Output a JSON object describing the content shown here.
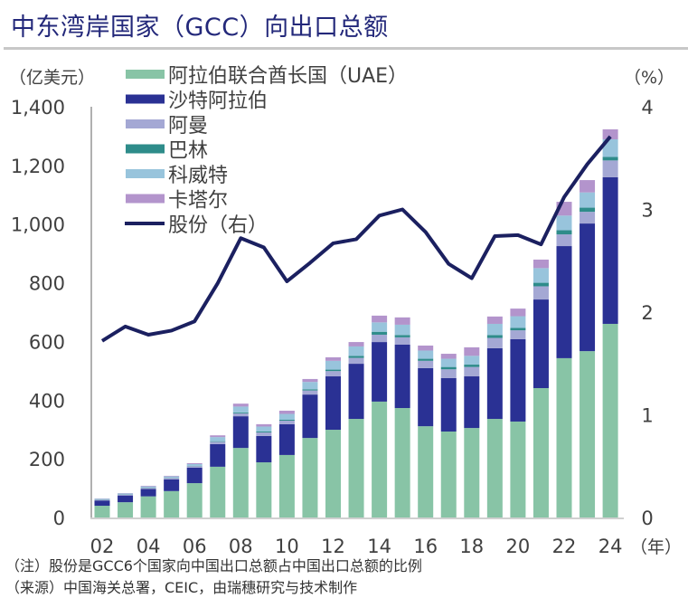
{
  "title": "中东湾岸国家（GCC）向出口总额",
  "notes": [
    "（注）股份是GCC6个国家向中国出口总额占中国出口总额的比例",
    "（来源）中国海关总署，CEIC，由瑞穗研究与技术制作"
  ],
  "chart_data": {
    "type": "bar",
    "stacked": true,
    "title": "中东湾岸国家（GCC）向出口总额",
    "ylabel": "（亿美元）",
    "ylabel_right": "（%）",
    "xlabel": "（年）",
    "ylim": [
      0,
      1400
    ],
    "ylim_right": [
      0,
      4
    ],
    "yticks": [
      "0",
      "200",
      "400",
      "600",
      "800",
      "1,000",
      "1,200",
      "1,400"
    ],
    "yticks_right": [
      "0",
      "1",
      "2",
      "3",
      "4"
    ],
    "xticks": [
      "02",
      "04",
      "06",
      "08",
      "10",
      "12",
      "14",
      "16",
      "18",
      "20",
      "22",
      "24"
    ],
    "grid": false,
    "legend_position": "top-left",
    "categories": [
      "02",
      "03",
      "04",
      "05",
      "06",
      "07",
      "08",
      "09",
      "10",
      "11",
      "12",
      "13",
      "14",
      "15",
      "16",
      "17",
      "18",
      "19",
      "20",
      "21",
      "22",
      "23",
      "24"
    ],
    "series": [
      {
        "name": "阿拉伯联合酋长国（UAE）",
        "color": "#88c4a6",
        "kind": "bar",
        "values": [
          40,
          52,
          72,
          90,
          117,
          173,
          237,
          188,
          213,
          271,
          299,
          336,
          395,
          373,
          311,
          293,
          305,
          336,
          327,
          441,
          543,
          567,
          660
        ]
      },
      {
        "name": "沙特阿拉伯",
        "color": "#2a3194",
        "kind": "bar",
        "values": [
          18,
          23,
          25,
          40,
          53,
          77,
          108,
          90,
          105,
          148,
          182,
          188,
          203,
          216,
          198,
          182,
          176,
          241,
          281,
          302,
          382,
          435,
          500
        ]
      },
      {
        "name": "阿曼",
        "color": "#a4a8d4",
        "kind": "bar",
        "values": [
          2,
          3,
          4,
          5,
          5,
          8,
          10,
          12,
          12,
          14,
          18,
          20,
          25,
          25,
          25,
          30,
          32,
          35,
          30,
          45,
          40,
          40,
          57
        ]
      },
      {
        "name": "巴林",
        "color": "#2e8c8a",
        "kind": "bar",
        "values": [
          1,
          1,
          1,
          1,
          1,
          2,
          3,
          3,
          3,
          4,
          5,
          7,
          10,
          8,
          7,
          8,
          8,
          10,
          8,
          12,
          14,
          14,
          12
        ]
      },
      {
        "name": "科威特",
        "color": "#98c4dc",
        "kind": "bar",
        "values": [
          3,
          3,
          4,
          4,
          6,
          14,
          20,
          17,
          20,
          25,
          30,
          32,
          32,
          35,
          28,
          28,
          30,
          38,
          40,
          50,
          50,
          52,
          60
        ]
      },
      {
        "name": "卡塔尔",
        "color": "#b394cc",
        "kind": "bar",
        "values": [
          1,
          1,
          2,
          2,
          3,
          6,
          10,
          8,
          11,
          10,
          12,
          15,
          23,
          25,
          17,
          17,
          29,
          25,
          26,
          29,
          47,
          42,
          34
        ]
      },
      {
        "name": "股份（右）",
        "color": "#1b2060",
        "kind": "line",
        "axis": "right",
        "values": [
          1.72,
          1.86,
          1.78,
          1.82,
          1.91,
          2.28,
          2.72,
          2.63,
          2.3,
          2.48,
          2.67,
          2.71,
          2.94,
          3.0,
          2.78,
          2.47,
          2.33,
          2.74,
          2.75,
          2.66,
          3.12,
          3.44,
          3.71
        ]
      }
    ]
  }
}
